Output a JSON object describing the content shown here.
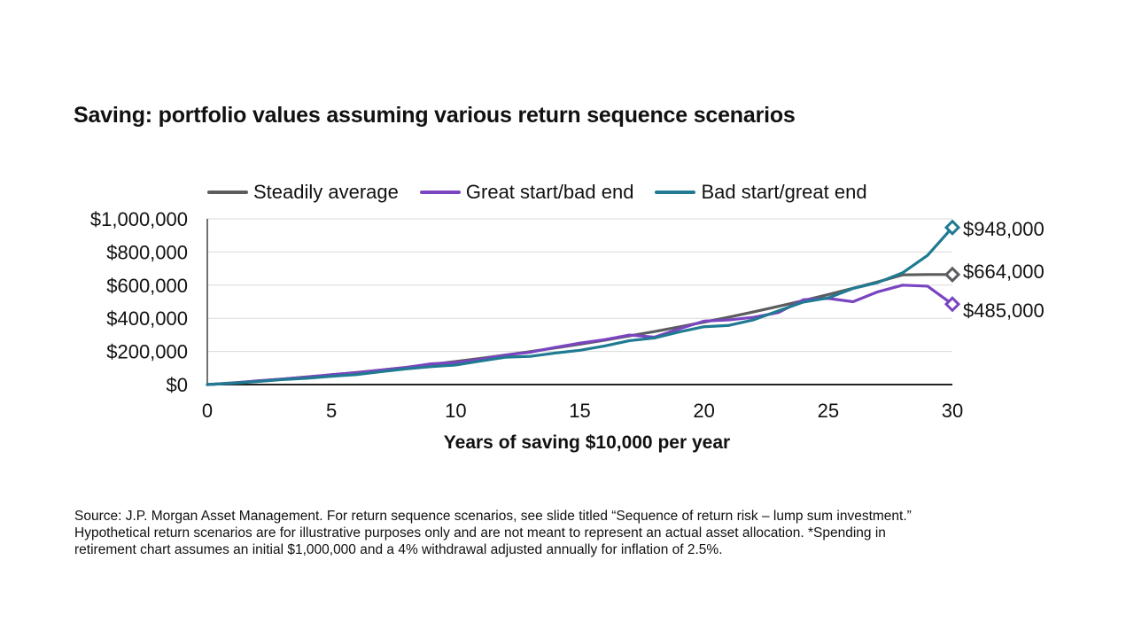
{
  "title": "Saving: portfolio values assuming various return sequence scenarios",
  "colors": {
    "steady": "#5b5c5e",
    "great_start": "#7a45c0",
    "bad_start": "#1f7a92"
  },
  "chart_data": {
    "type": "line",
    "xlabel": "Years of saving $10,000 per year",
    "ylabel": "",
    "xlim": [
      0,
      30
    ],
    "ylim": [
      0,
      1000000
    ],
    "x_ticks": [
      "0",
      "5",
      "10",
      "15",
      "20",
      "25",
      "30"
    ],
    "y_ticks": [
      "$0",
      "$200,000",
      "$400,000",
      "$600,000",
      "$800,000",
      "$1,000,000"
    ],
    "grid": true,
    "legend_position": "top",
    "x": [
      0,
      1,
      2,
      3,
      4,
      5,
      6,
      7,
      8,
      9,
      10,
      11,
      12,
      13,
      14,
      15,
      16,
      17,
      18,
      19,
      20,
      21,
      22,
      23,
      24,
      25,
      26,
      27,
      28,
      29,
      30
    ],
    "series": [
      {
        "name": "Steadily average",
        "color": "#5b5c5e",
        "values": [
          0,
          10000,
          21000,
          33000,
          46000,
          59000,
          73000,
          88000,
          104000,
          121000,
          139000,
          158000,
          178000,
          199000,
          221000,
          244000,
          268000,
          294000,
          320000,
          348000,
          377000,
          407000,
          439000,
          472000,
          507000,
          543000,
          581000,
          620000,
          662000,
          664000,
          664000
        ]
      },
      {
        "name": "Great start/bad end",
        "color": "#7a45c0",
        "values": [
          0,
          8000,
          22000,
          33000,
          45000,
          60000,
          71000,
          88000,
          103000,
          125000,
          133000,
          152000,
          178000,
          195000,
          224000,
          250000,
          271000,
          299000,
          286000,
          336000,
          383000,
          390000,
          406000,
          435000,
          512000,
          520000,
          500000,
          560000,
          600000,
          594000,
          485000
        ]
      },
      {
        "name": "Bad start/great end",
        "color": "#1f7a92",
        "values": [
          0,
          8000,
          18000,
          30000,
          38000,
          50000,
          60000,
          78000,
          95000,
          108000,
          118000,
          142000,
          165000,
          170000,
          190000,
          207000,
          233000,
          265000,
          281000,
          318000,
          349000,
          357000,
          391000,
          445000,
          498000,
          523000,
          580000,
          616000,
          675000,
          780000,
          948000
        ]
      }
    ],
    "end_labels": [
      {
        "series": "Bad start/great end",
        "value": 948000,
        "text": "$948,000"
      },
      {
        "series": "Steadily average",
        "value": 664000,
        "text": "$664,000"
      },
      {
        "series": "Great start/bad end",
        "value": 485000,
        "text": "$485,000"
      }
    ]
  },
  "source": {
    "line1": "Source: J.P. Morgan Asset Management. For return sequence scenarios, see slide titled “Sequence of return risk – lump sum investment.”",
    "line2": "Hypothetical return scenarios are for illustrative purposes only and are not meant to represent an actual asset allocation. *Spending in",
    "line3": "retirement chart assumes an initial $1,000,000 and a 4% withdrawal adjusted annually for inflation of 2.5%."
  }
}
